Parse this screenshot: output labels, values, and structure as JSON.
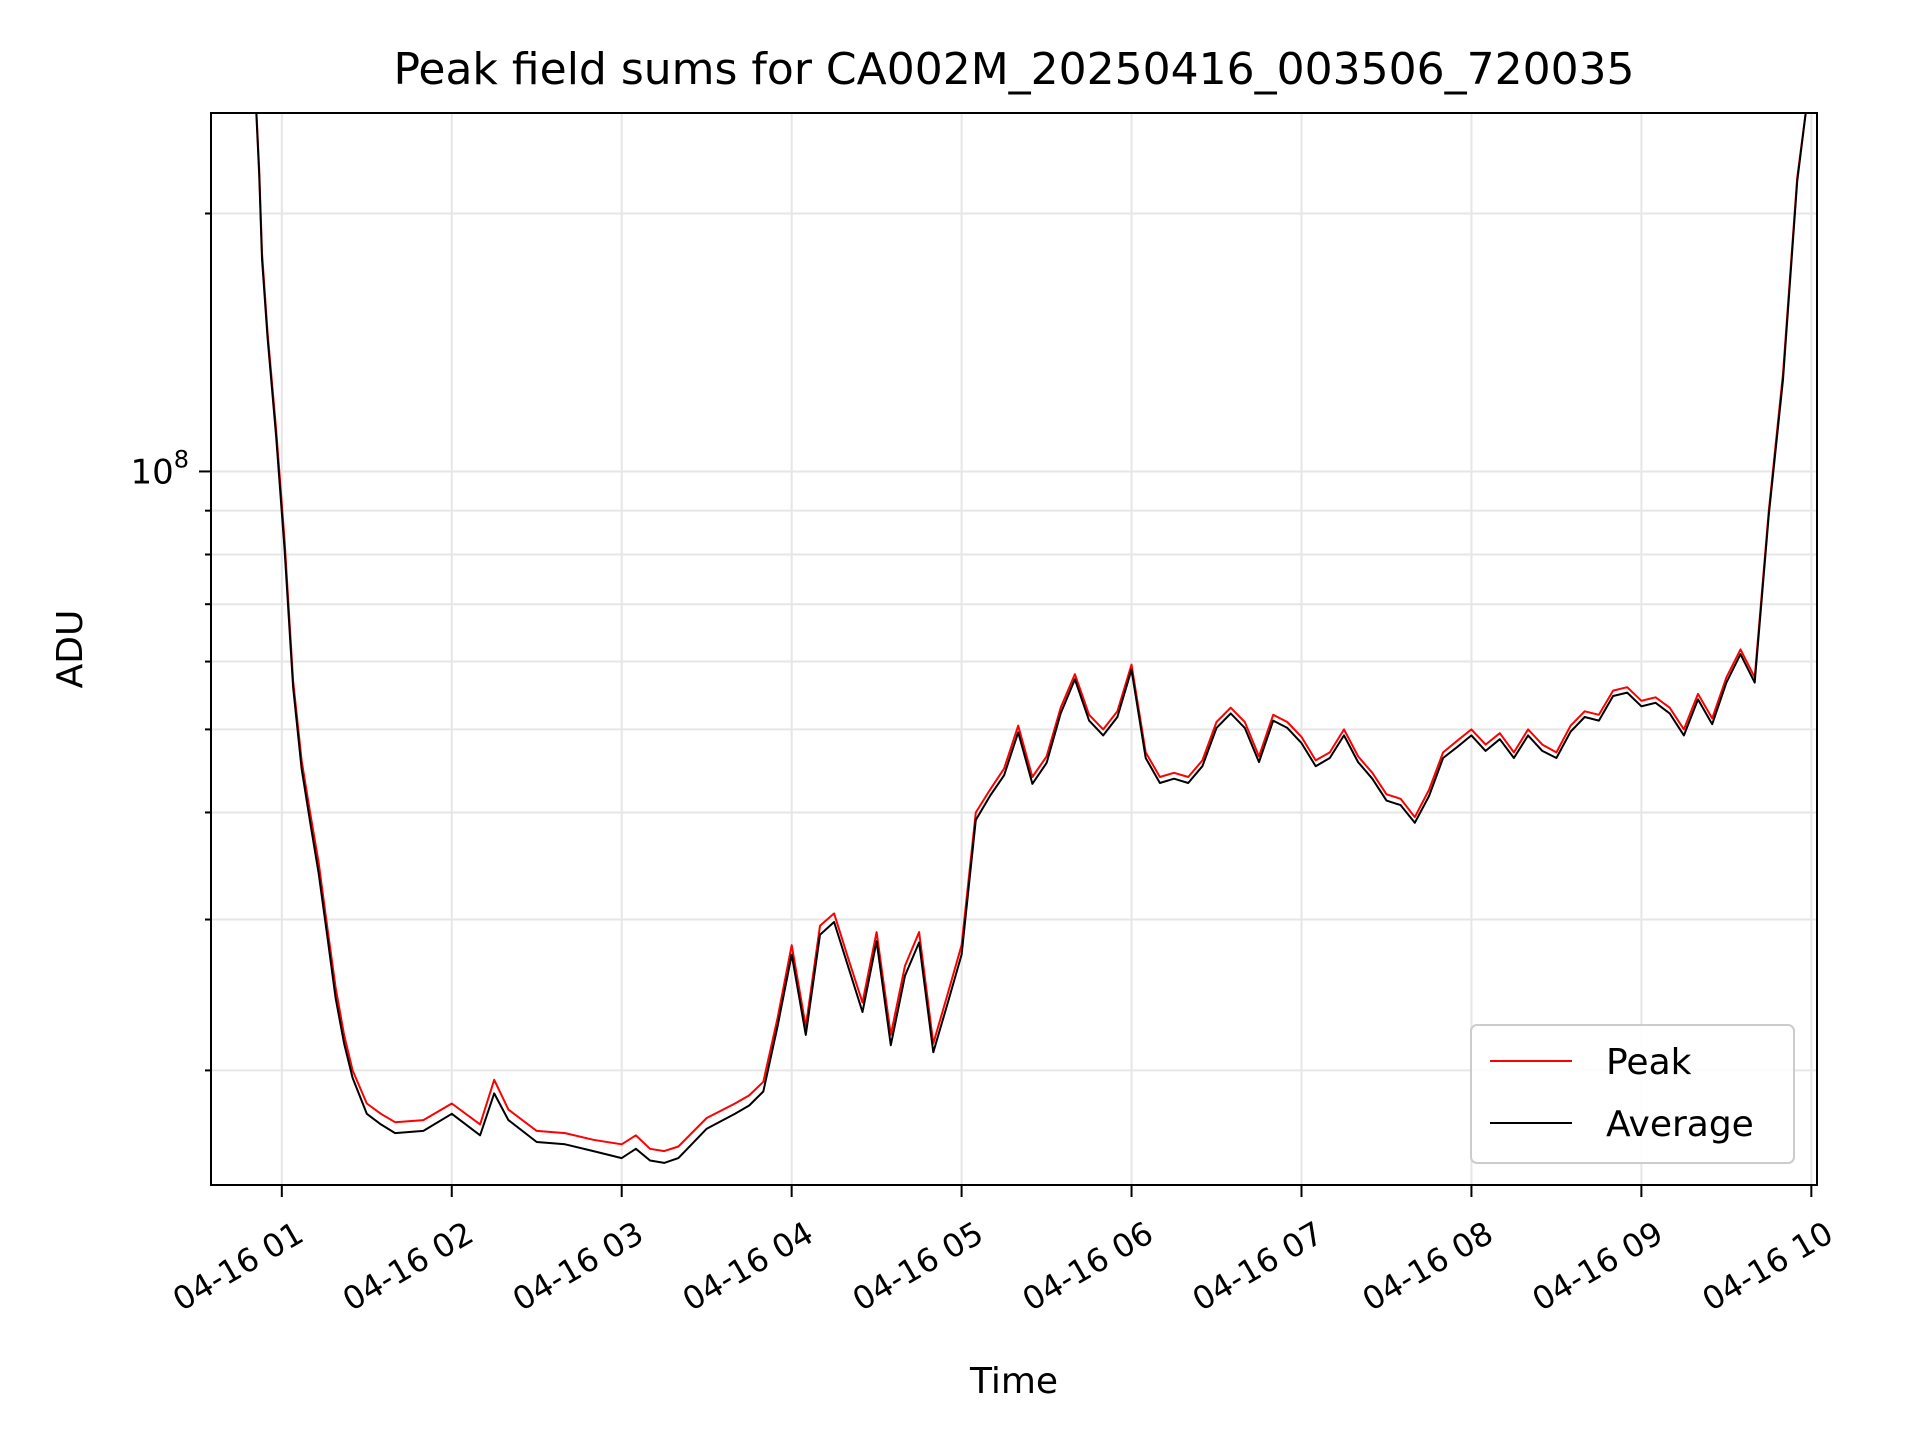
{
  "chart_data": {
    "type": "line",
    "title": "Peak field sums for CA002M_20250416_003506_720035",
    "xlabel": "Time",
    "ylabel": "ADU",
    "x_scale": "time",
    "y_scale": "log",
    "grid": true,
    "legend_position": "lower-right",
    "xlim": [
      "2025-04-16 00:35",
      "2025-04-16 10:02"
    ],
    "ylim": [
      14700000,
      262000000
    ],
    "x_ticks": [
      {
        "value": "2025-04-16 01:00",
        "label": "04-16 01"
      },
      {
        "value": "2025-04-16 02:00",
        "label": "04-16 02"
      },
      {
        "value": "2025-04-16 03:00",
        "label": "04-16 03"
      },
      {
        "value": "2025-04-16 04:00",
        "label": "04-16 04"
      },
      {
        "value": "2025-04-16 05:00",
        "label": "04-16 05"
      },
      {
        "value": "2025-04-16 06:00",
        "label": "04-16 06"
      },
      {
        "value": "2025-04-16 07:00",
        "label": "04-16 07"
      },
      {
        "value": "2025-04-16 08:00",
        "label": "04-16 08"
      },
      {
        "value": "2025-04-16 09:00",
        "label": "04-16 09"
      },
      {
        "value": "2025-04-16 10:00",
        "label": "04-16 10"
      }
    ],
    "y_major_ticks": [
      {
        "value": 100000000,
        "base": "10",
        "exponent": "8"
      }
    ],
    "series": [
      {
        "name": "Peak",
        "color": "#ff0000",
        "x": [
          "2025-04-16 00:51",
          "2025-04-16 00:52",
          "2025-04-16 00:53",
          "2025-04-16 00:55",
          "2025-04-16 00:58",
          "2025-04-16 01:01",
          "2025-04-16 01:04",
          "2025-04-16 01:07",
          "2025-04-16 01:10",
          "2025-04-16 01:13",
          "2025-04-16 01:16",
          "2025-04-16 01:19",
          "2025-04-16 01:22",
          "2025-04-16 01:25",
          "2025-04-16 01:30",
          "2025-04-16 01:35",
          "2025-04-16 01:40",
          "2025-04-16 01:50",
          "2025-04-16 02:00",
          "2025-04-16 02:10",
          "2025-04-16 02:15",
          "2025-04-16 02:20",
          "2025-04-16 02:30",
          "2025-04-16 02:40",
          "2025-04-16 02:50",
          "2025-04-16 03:00",
          "2025-04-16 03:05",
          "2025-04-16 03:10",
          "2025-04-16 03:15",
          "2025-04-16 03:20",
          "2025-04-16 03:30",
          "2025-04-16 03:40",
          "2025-04-16 03:45",
          "2025-04-16 03:50",
          "2025-04-16 03:55",
          "2025-04-16 04:00",
          "2025-04-16 04:05",
          "2025-04-16 04:10",
          "2025-04-16 04:15",
          "2025-04-16 04:20",
          "2025-04-16 04:25",
          "2025-04-16 04:30",
          "2025-04-16 04:35",
          "2025-04-16 04:40",
          "2025-04-16 04:45",
          "2025-04-16 04:50",
          "2025-04-16 04:55",
          "2025-04-16 05:00",
          "2025-04-16 05:05",
          "2025-04-16 05:10",
          "2025-04-16 05:15",
          "2025-04-16 05:20",
          "2025-04-16 05:25",
          "2025-04-16 05:30",
          "2025-04-16 05:35",
          "2025-04-16 05:40",
          "2025-04-16 05:45",
          "2025-04-16 05:50",
          "2025-04-16 05:55",
          "2025-04-16 06:00",
          "2025-04-16 06:05",
          "2025-04-16 06:10",
          "2025-04-16 06:15",
          "2025-04-16 06:20",
          "2025-04-16 06:25",
          "2025-04-16 06:30",
          "2025-04-16 06:35",
          "2025-04-16 06:40",
          "2025-04-16 06:45",
          "2025-04-16 06:50",
          "2025-04-16 06:55",
          "2025-04-16 07:00",
          "2025-04-16 07:05",
          "2025-04-16 07:10",
          "2025-04-16 07:15",
          "2025-04-16 07:20",
          "2025-04-16 07:25",
          "2025-04-16 07:30",
          "2025-04-16 07:35",
          "2025-04-16 07:40",
          "2025-04-16 07:45",
          "2025-04-16 07:50",
          "2025-04-16 07:55",
          "2025-04-16 08:00",
          "2025-04-16 08:05",
          "2025-04-16 08:10",
          "2025-04-16 08:15",
          "2025-04-16 08:20",
          "2025-04-16 08:25",
          "2025-04-16 08:30",
          "2025-04-16 08:35",
          "2025-04-16 08:40",
          "2025-04-16 08:45",
          "2025-04-16 08:50",
          "2025-04-16 08:55",
          "2025-04-16 09:00",
          "2025-04-16 09:05",
          "2025-04-16 09:10",
          "2025-04-16 09:15",
          "2025-04-16 09:20",
          "2025-04-16 09:25",
          "2025-04-16 09:30",
          "2025-04-16 09:35",
          "2025-04-16 09:40",
          "2025-04-16 09:45",
          "2025-04-16 09:50",
          "2025-04-16 09:55",
          "2025-04-16 09:58"
        ],
        "y": [
          265000000,
          225000000,
          180000000,
          145000000,
          112000000,
          83000000,
          57000000,
          46000000,
          40000000,
          35000000,
          29500000,
          25000000,
          22000000,
          20000000,
          18300000,
          17800000,
          17400000,
          17500000,
          18300000,
          17300000,
          19500000,
          18000000,
          17000000,
          16900000,
          16600000,
          16400000,
          16800000,
          16200000,
          16100000,
          16300000,
          17600000,
          18300000,
          18700000,
          19400000,
          23000000,
          28000000,
          22500000,
          29500000,
          30500000,
          27000000,
          24000000,
          29000000,
          22000000,
          26500000,
          29000000,
          21500000,
          24500000,
          28000000,
          40000000,
          42500000,
          45000000,
          50500000,
          44000000,
          46500000,
          53000000,
          58000000,
          52000000,
          50000000,
          52500000,
          59500000,
          47000000,
          44000000,
          44500000,
          44000000,
          46000000,
          51000000,
          53000000,
          51000000,
          46500000,
          52000000,
          51000000,
          49000000,
          46000000,
          47000000,
          50000000,
          46500000,
          44500000,
          42000000,
          41500000,
          39500000,
          42500000,
          47000000,
          48500000,
          50000000,
          48000000,
          49500000,
          47000000,
          50000000,
          48000000,
          47000000,
          50500000,
          52500000,
          52000000,
          55500000,
          56000000,
          54000000,
          54500000,
          53000000,
          50000000,
          55000000,
          51500000,
          57500000,
          62000000,
          57500000,
          90000000,
          130000000,
          220000000,
          262000000
        ]
      },
      {
        "name": "Average",
        "color": "#000000",
        "x": [
          "2025-04-16 00:51",
          "2025-04-16 00:52",
          "2025-04-16 00:53",
          "2025-04-16 00:55",
          "2025-04-16 00:58",
          "2025-04-16 01:01",
          "2025-04-16 01:04",
          "2025-04-16 01:07",
          "2025-04-16 01:10",
          "2025-04-16 01:13",
          "2025-04-16 01:16",
          "2025-04-16 01:19",
          "2025-04-16 01:22",
          "2025-04-16 01:25",
          "2025-04-16 01:30",
          "2025-04-16 01:35",
          "2025-04-16 01:40",
          "2025-04-16 01:50",
          "2025-04-16 02:00",
          "2025-04-16 02:10",
          "2025-04-16 02:15",
          "2025-04-16 02:20",
          "2025-04-16 02:30",
          "2025-04-16 02:40",
          "2025-04-16 02:50",
          "2025-04-16 03:00",
          "2025-04-16 03:05",
          "2025-04-16 03:10",
          "2025-04-16 03:15",
          "2025-04-16 03:20",
          "2025-04-16 03:30",
          "2025-04-16 03:40",
          "2025-04-16 03:45",
          "2025-04-16 03:50",
          "2025-04-16 03:55",
          "2025-04-16 04:00",
          "2025-04-16 04:05",
          "2025-04-16 04:10",
          "2025-04-16 04:15",
          "2025-04-16 04:20",
          "2025-04-16 04:25",
          "2025-04-16 04:30",
          "2025-04-16 04:35",
          "2025-04-16 04:40",
          "2025-04-16 04:45",
          "2025-04-16 04:50",
          "2025-04-16 04:55",
          "2025-04-16 05:00",
          "2025-04-16 05:05",
          "2025-04-16 05:10",
          "2025-04-16 05:15",
          "2025-04-16 05:20",
          "2025-04-16 05:25",
          "2025-04-16 05:30",
          "2025-04-16 05:35",
          "2025-04-16 05:40",
          "2025-04-16 05:45",
          "2025-04-16 05:50",
          "2025-04-16 05:55",
          "2025-04-16 06:00",
          "2025-04-16 06:05",
          "2025-04-16 06:10",
          "2025-04-16 06:15",
          "2025-04-16 06:20",
          "2025-04-16 06:25",
          "2025-04-16 06:30",
          "2025-04-16 06:35",
          "2025-04-16 06:40",
          "2025-04-16 06:45",
          "2025-04-16 06:50",
          "2025-04-16 06:55",
          "2025-04-16 07:00",
          "2025-04-16 07:05",
          "2025-04-16 07:10",
          "2025-04-16 07:15",
          "2025-04-16 07:20",
          "2025-04-16 07:25",
          "2025-04-16 07:30",
          "2025-04-16 07:35",
          "2025-04-16 07:40",
          "2025-04-16 07:45",
          "2025-04-16 07:50",
          "2025-04-16 07:55",
          "2025-04-16 08:00",
          "2025-04-16 08:05",
          "2025-04-16 08:10",
          "2025-04-16 08:15",
          "2025-04-16 08:20",
          "2025-04-16 08:25",
          "2025-04-16 08:30",
          "2025-04-16 08:35",
          "2025-04-16 08:40",
          "2025-04-16 08:45",
          "2025-04-16 08:50",
          "2025-04-16 08:55",
          "2025-04-16 09:00",
          "2025-04-16 09:05",
          "2025-04-16 09:10",
          "2025-04-16 09:15",
          "2025-04-16 09:20",
          "2025-04-16 09:25",
          "2025-04-16 09:30",
          "2025-04-16 09:35",
          "2025-04-16 09:40",
          "2025-04-16 09:45",
          "2025-04-16 09:50",
          "2025-04-16 09:55",
          "2025-04-16 09:58"
        ],
        "y": [
          262000000,
          222000000,
          177000000,
          143000000,
          110000000,
          81000000,
          56000000,
          45000000,
          39000000,
          34000000,
          28800000,
          24300000,
          21500000,
          19600000,
          17800000,
          17300000,
          16900000,
          17000000,
          17800000,
          16800000,
          18800000,
          17500000,
          16500000,
          16400000,
          16100000,
          15800000,
          16200000,
          15700000,
          15600000,
          15800000,
          17100000,
          17800000,
          18200000,
          18900000,
          22500000,
          27300000,
          22000000,
          28800000,
          29800000,
          26400000,
          23400000,
          28300000,
          21400000,
          25800000,
          28200000,
          21000000,
          23900000,
          27300000,
          39200000,
          41800000,
          44200000,
          49600000,
          43200000,
          45700000,
          52200000,
          57200000,
          51200000,
          49200000,
          51700000,
          58700000,
          46300000,
          43300000,
          43800000,
          43300000,
          45300000,
          50200000,
          52200000,
          50200000,
          45800000,
          51200000,
          50200000,
          48200000,
          45300000,
          46300000,
          49200000,
          45800000,
          43800000,
          41300000,
          40800000,
          38900000,
          41800000,
          46300000,
          47700000,
          49200000,
          47200000,
          48700000,
          46300000,
          49200000,
          47200000,
          46300000,
          49700000,
          51700000,
          51200000,
          54700000,
          55200000,
          53200000,
          53700000,
          52200000,
          49200000,
          54200000,
          50700000,
          56700000,
          61200000,
          56700000,
          89000000,
          128000000,
          218000000,
          262000000
        ]
      }
    ]
  }
}
